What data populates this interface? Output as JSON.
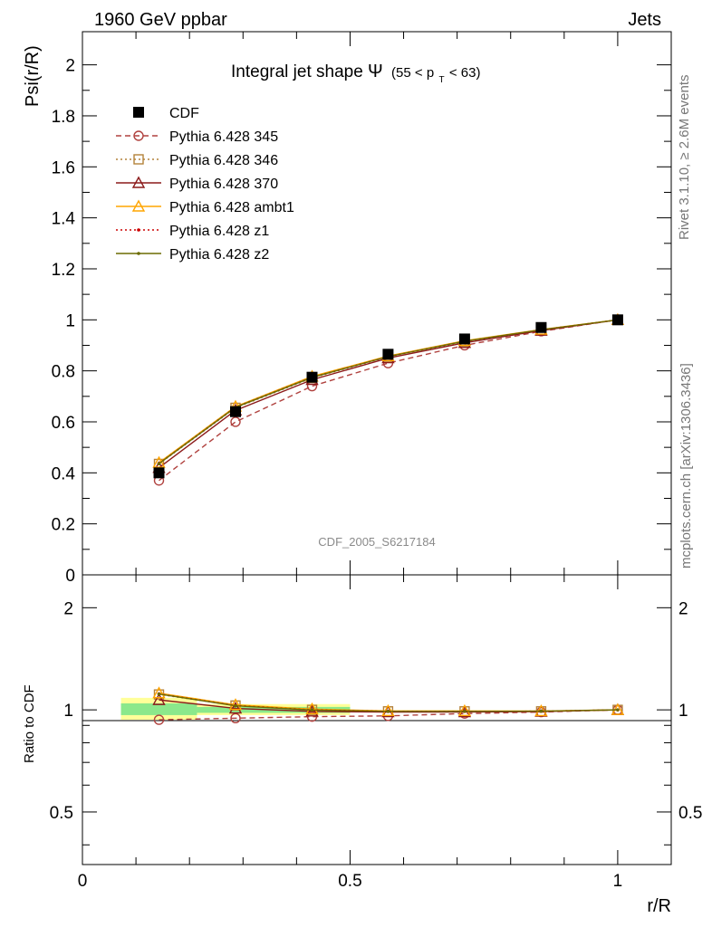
{
  "header": {
    "left": "1960 GeV ppbar",
    "right": "Jets"
  },
  "side_labels": {
    "rivet": "Rivet 3.1.10, ≥ 2.6M events",
    "mcplots": "mcplots.cern.ch [arXiv:1306.3436]"
  },
  "chart_data": [
    {
      "type": "line",
      "panel": "main",
      "title_main": "Integral jet shape",
      "title_symbol": "Ψ",
      "title_range": "(55 < p",
      "title_sub": "T",
      "title_range_end": " < 63)",
      "ylabel": "Psi(r/R)",
      "watermark": "CDF_2005_S6217184",
      "xlim": [
        0,
        1.1
      ],
      "ylim": [
        0,
        2.13
      ],
      "yticks": [
        "0",
        "0.2",
        "0.4",
        "0.6",
        "0.8",
        "1",
        "1.2",
        "1.4",
        "1.6",
        "1.8",
        "2"
      ],
      "x": [
        0.143,
        0.286,
        0.429,
        0.571,
        0.714,
        0.857,
        1.0
      ],
      "series": [
        {
          "name": "CDF",
          "color": "#000000",
          "marker": "filled-square",
          "line": "none",
          "values": [
            0.4,
            0.64,
            0.775,
            0.865,
            0.925,
            0.97,
            1.0
          ]
        },
        {
          "name": "Pythia 6.428 345",
          "color": "#b0413e",
          "marker": "open-circle",
          "line": "dashed",
          "values": [
            0.37,
            0.6,
            0.74,
            0.83,
            0.9,
            0.955,
            1.0
          ]
        },
        {
          "name": "Pythia 6.428 346",
          "color": "#b4823a",
          "marker": "open-square",
          "line": "dotted",
          "values": [
            0.435,
            0.655,
            0.772,
            0.855,
            0.915,
            0.96,
            1.0
          ]
        },
        {
          "name": "Pythia 6.428 370",
          "color": "#8b1a1a",
          "marker": "open-triangle",
          "line": "solid",
          "values": [
            0.42,
            0.645,
            0.765,
            0.85,
            0.91,
            0.958,
            1.0
          ]
        },
        {
          "name": "Pythia 6.428 ambt1",
          "color": "#ffa500",
          "marker": "open-triangle",
          "line": "solid",
          "values": [
            0.44,
            0.66,
            0.778,
            0.858,
            0.918,
            0.962,
            1.0
          ]
        },
        {
          "name": "Pythia 6.428 z1",
          "color": "#cc0000",
          "marker": "dot",
          "line": "dotted",
          "values": [
            0.437,
            0.658,
            0.775,
            0.856,
            0.916,
            0.961,
            1.0
          ]
        },
        {
          "name": "Pythia 6.428 z2",
          "color": "#6b6b00",
          "marker": "dot",
          "line": "solid",
          "values": [
            0.436,
            0.657,
            0.774,
            0.856,
            0.916,
            0.961,
            1.0
          ]
        }
      ]
    },
    {
      "type": "line",
      "panel": "ratio",
      "ylabel": "Ratio to CDF",
      "xlabel": "r/R",
      "xlim": [
        0,
        1.1
      ],
      "xticks": [
        "0",
        "0.5",
        "1"
      ],
      "yscale": "log",
      "ylim": [
        0.35,
        2.5
      ],
      "yticks": [
        "0.5",
        "1",
        "2"
      ],
      "band_yellow": {
        "x": [
          0.072,
          0.214,
          0.5
        ],
        "lower": [
          0.935,
          0.965,
          0.985
        ],
        "upper": [
          1.085,
          1.04,
          1.02
        ]
      },
      "band_green": {
        "x": [
          0.072,
          0.214,
          0.5
        ],
        "lower": [
          0.965,
          0.98,
          0.99
        ],
        "upper": [
          1.045,
          1.02,
          1.01
        ]
      },
      "x": [
        0.143,
        0.286,
        0.429,
        0.571,
        0.714,
        0.857,
        1.0
      ],
      "series": [
        {
          "name": "Pythia 6.428 345",
          "values": [
            0.935,
            0.945,
            0.955,
            0.96,
            0.975,
            0.985,
            1.0
          ]
        },
        {
          "name": "Pythia 6.428 346",
          "values": [
            1.11,
            1.03,
            1.0,
            0.99,
            0.99,
            0.99,
            1.0
          ]
        },
        {
          "name": "Pythia 6.428 370",
          "values": [
            1.07,
            1.01,
            0.99,
            0.985,
            0.985,
            0.988,
            1.0
          ]
        },
        {
          "name": "Pythia 6.428 ambt1",
          "values": [
            1.12,
            1.035,
            1.005,
            0.993,
            0.993,
            0.992,
            1.0
          ]
        },
        {
          "name": "Pythia 6.428 z1",
          "values": [
            1.115,
            1.03,
            1.0,
            0.99,
            0.99,
            0.991,
            1.0
          ]
        },
        {
          "name": "Pythia 6.428 z2",
          "values": [
            1.113,
            1.028,
            0.999,
            0.99,
            0.99,
            0.991,
            1.0
          ]
        }
      ]
    }
  ]
}
